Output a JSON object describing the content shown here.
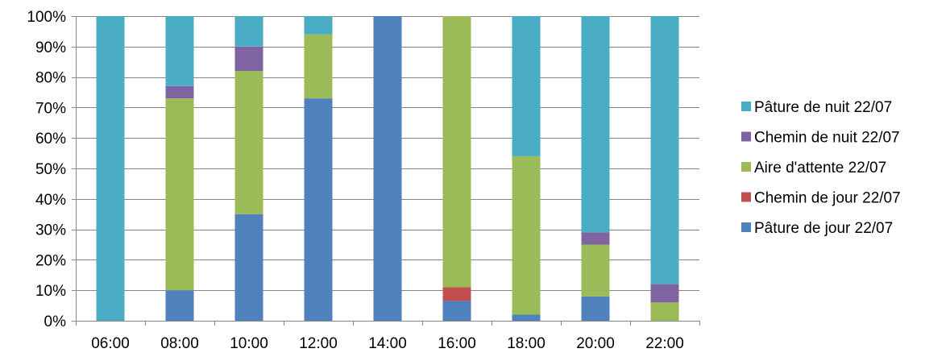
{
  "chart_data": {
    "type": "bar",
    "stacked": true,
    "normalized": true,
    "categories": [
      "06:00",
      "08:00",
      "10:00",
      "12:00",
      "14:00",
      "16:00",
      "18:00",
      "20:00",
      "22:00"
    ],
    "y_ticks": [
      "0%",
      "10%",
      "20%",
      "30%",
      "40%",
      "50%",
      "60%",
      "70%",
      "80%",
      "90%",
      "100%"
    ],
    "ylim": [
      0,
      100
    ],
    "grid": true,
    "legend_position": "right",
    "series": [
      {
        "name": "Pâture de jour 22/07",
        "color": "#4F81BD",
        "values": [
          0,
          10,
          35,
          73,
          100,
          6.5,
          2,
          8,
          0
        ]
      },
      {
        "name": "Chemin de jour 22/07",
        "color": "#C0504D",
        "values": [
          0,
          0,
          0,
          0,
          0,
          4.5,
          0,
          0,
          0
        ]
      },
      {
        "name": "Aire d'attente  22/07",
        "color": "#9BBB59",
        "values": [
          0,
          63,
          47,
          21,
          0,
          89,
          52,
          17,
          6
        ]
      },
      {
        "name": "Chemin de nuit  22/07",
        "color": "#8064A2",
        "values": [
          0,
          4,
          8,
          0,
          0,
          0,
          0,
          4,
          6
        ]
      },
      {
        "name": "Pâture de nuit 22/07",
        "color": "#4BACC6",
        "values": [
          100,
          23,
          10,
          6,
          0,
          0,
          46,
          71,
          88
        ]
      }
    ],
    "legend_order": [
      4,
      3,
      2,
      1,
      0
    ]
  }
}
